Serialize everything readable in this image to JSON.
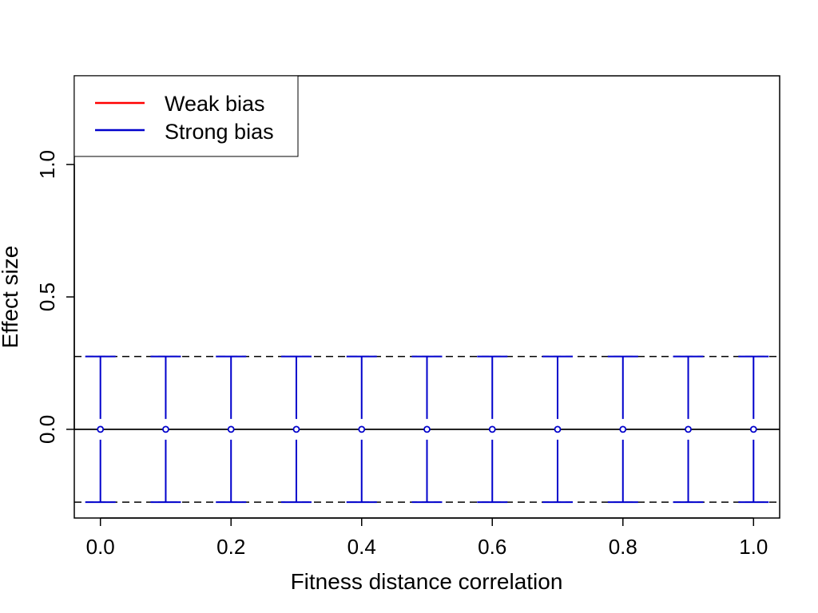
{
  "chart_data": {
    "type": "scatter",
    "title": "",
    "xlabel": "Fitness distance correlation",
    "ylabel": "Effect size",
    "xlim": [
      -0.04,
      1.04
    ],
    "ylim": [
      -0.335,
      1.335
    ],
    "x_ticks": [
      0.0,
      0.2,
      0.4,
      0.6,
      0.8,
      1.0
    ],
    "x_tick_labels": [
      "0.0",
      "0.2",
      "0.4",
      "0.6",
      "0.8",
      "1.0"
    ],
    "y_ticks": [
      0.0,
      0.5,
      1.0
    ],
    "y_tick_labels": [
      "0.0",
      "0.5",
      "1.0"
    ],
    "reference_lines": [
      {
        "y": 0.0,
        "style": "solid"
      },
      {
        "y": 0.275,
        "style": "dashed"
      },
      {
        "y": -0.275,
        "style": "dashed"
      }
    ],
    "legend": {
      "position": "top-left",
      "entries": [
        {
          "label": "Weak bias",
          "color": "#ff0000"
        },
        {
          "label": "Strong bias",
          "color": "#0000cc"
        }
      ]
    },
    "series": [
      {
        "name": "Strong bias",
        "color": "#0000cc",
        "x": [
          0.0,
          0.1,
          0.2,
          0.3,
          0.4,
          0.5,
          0.6,
          0.7,
          0.8,
          0.9,
          1.0
        ],
        "y": [
          0,
          0,
          0,
          0,
          0,
          0,
          0,
          0,
          0,
          0,
          0
        ],
        "ci_low": [
          -0.275,
          -0.275,
          -0.275,
          -0.275,
          -0.275,
          -0.275,
          -0.275,
          -0.275,
          -0.275,
          -0.275,
          -0.275
        ],
        "ci_high": [
          0.275,
          0.275,
          0.275,
          0.275,
          0.275,
          0.275,
          0.275,
          0.275,
          0.275,
          0.275,
          0.275
        ]
      }
    ]
  }
}
